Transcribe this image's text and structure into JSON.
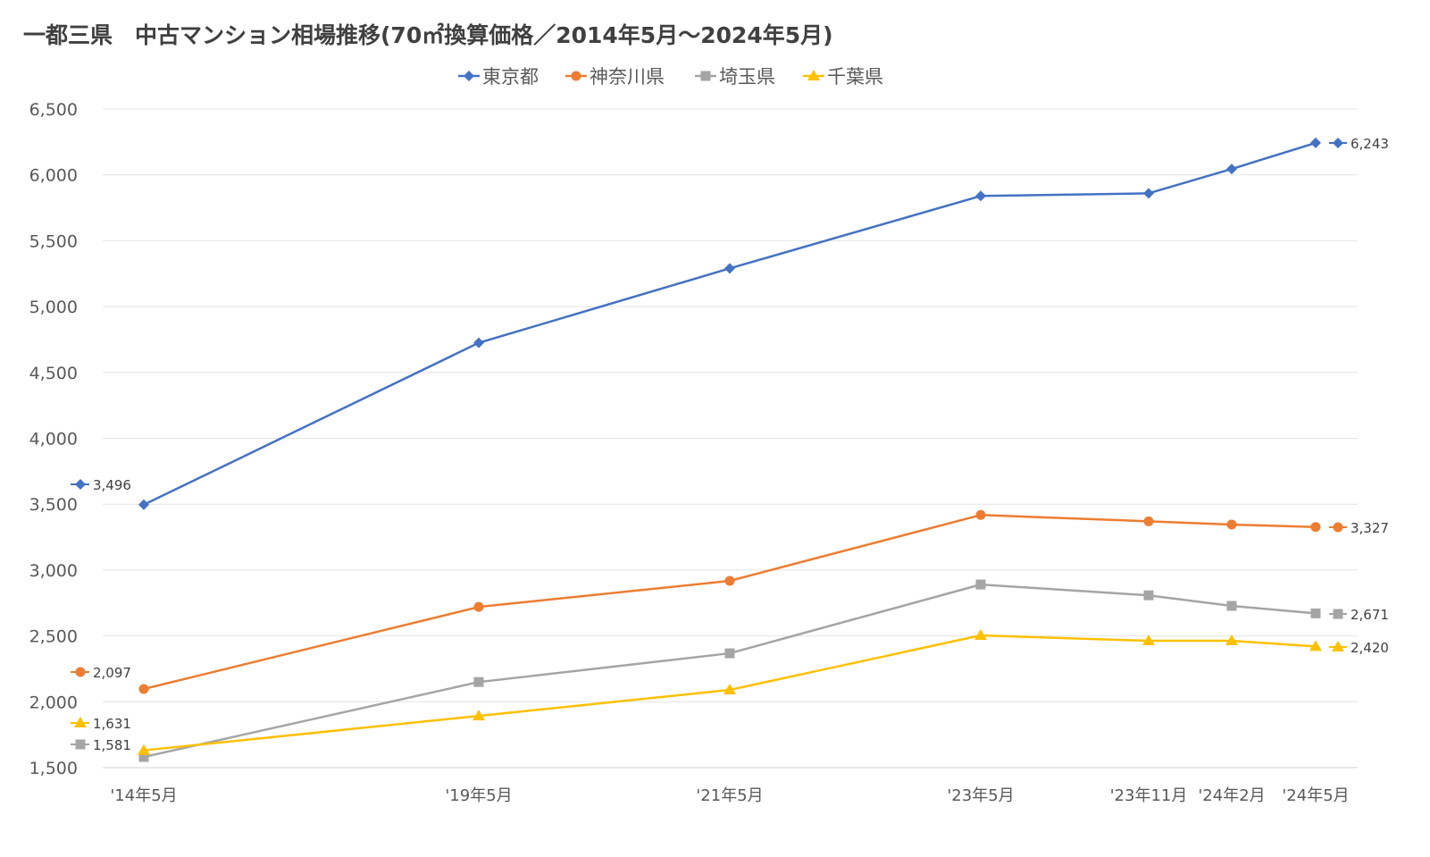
{
  "chart_data": {
    "type": "line",
    "title": "一都三県　中古マンション相場推移(70㎡換算価格／2014年5月～2024年5月)",
    "xlabel": "",
    "ylabel": "",
    "ylim": [
      1500,
      6500
    ],
    "yticks": [
      1500,
      2000,
      2500,
      3000,
      3500,
      4000,
      4500,
      5000,
      5500,
      6000,
      6500
    ],
    "ytick_labels": [
      "1,500",
      "2,000",
      "2,500",
      "3,000",
      "3,500",
      "4,000",
      "4,500",
      "5,000",
      "5,500",
      "6,000",
      "6,500"
    ],
    "grid": true,
    "legend_position": "top",
    "categories": [
      "'14年5月",
      "'19年5月",
      "'21年5月",
      "'23年5月",
      "'23年11月",
      "'24年2月",
      "'24年5月"
    ],
    "series": [
      {
        "name": "東京都",
        "color": "#4472C4",
        "marker": "diamond",
        "values": [
          3496,
          4725,
          5290,
          5840,
          5860,
          6045,
          6243
        ],
        "first_label": "3,496",
        "last_label": "6,243"
      },
      {
        "name": "神奈川県",
        "color": "#ED7D31",
        "marker": "circle",
        "values": [
          2097,
          2720,
          2918,
          3418,
          3370,
          3345,
          3327
        ],
        "first_label": "2,097",
        "last_label": "3,327"
      },
      {
        "name": "埼玉県",
        "color": "#A5A5A5",
        "marker": "square",
        "values": [
          1581,
          2150,
          2368,
          2890,
          2808,
          2728,
          2671
        ],
        "first_label": "1,581",
        "last_label": "2,671"
      },
      {
        "name": "千葉県",
        "color": "#FFC000",
        "marker": "triangle",
        "values": [
          1631,
          1893,
          2090,
          2504,
          2463,
          2463,
          2420
        ],
        "first_label": "1,631",
        "last_label": "2,420"
      }
    ]
  }
}
